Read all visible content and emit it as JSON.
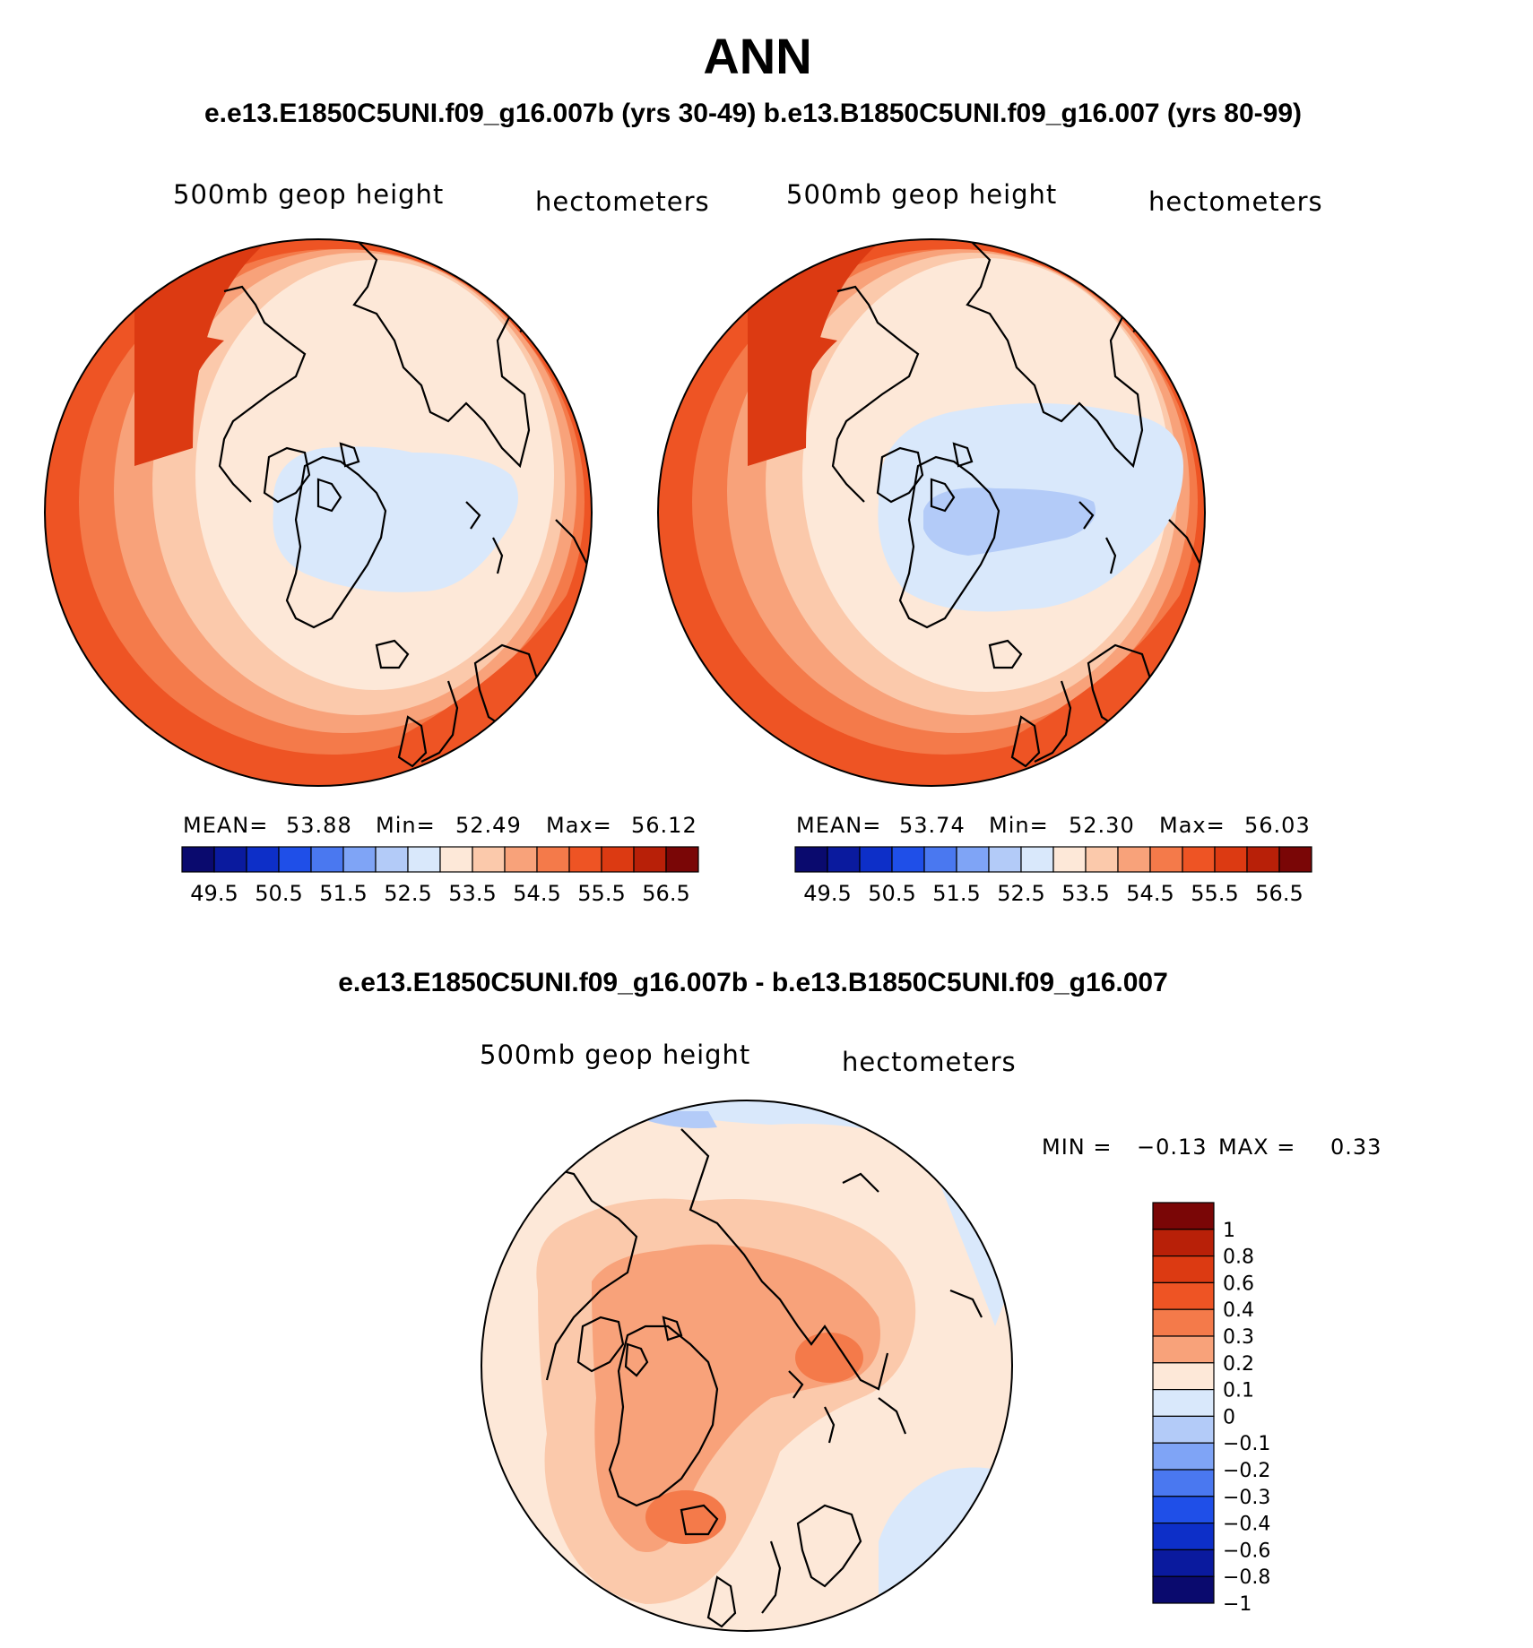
{
  "title": "ANN",
  "subtitle": "e.e13.E1850C5UNI.f09_g16.007b (yrs 30-49)  b.e13.B1850C5UNI.f09_g16.007 (yrs 80-99)",
  "panels": [
    {
      "field": "500mb geop height",
      "units": "hectometers",
      "stats": {
        "mean_label": "MEAN=",
        "mean": "53.88",
        "min_label": "Min=",
        "min": "52.49",
        "max_label": "Max=",
        "max": "56.12"
      }
    },
    {
      "field": "500mb geop height",
      "units": "hectometers",
      "stats": {
        "mean_label": "MEAN=",
        "mean": "53.74",
        "min_label": "Min=",
        "min": "52.30",
        "max_label": "Max=",
        "max": "56.03"
      }
    }
  ],
  "abs_colorbar": {
    "colors": [
      "#0a0a6e",
      "#0a1a9e",
      "#0d2fc8",
      "#1f4fe8",
      "#4a78f0",
      "#7fa4f6",
      "#b3cbf8",
      "#d9e8fb",
      "#fde8d8",
      "#fbc9ab",
      "#f8a27a",
      "#f47a4a",
      "#ee5424",
      "#dc3a12",
      "#b82008",
      "#7a0606"
    ],
    "labels": [
      "49.5",
      "50.5",
      "51.5",
      "52.5",
      "53.5",
      "54.5",
      "55.5",
      "56.5"
    ]
  },
  "diff_panel": {
    "title": "e.e13.E1850C5UNI.f09_g16.007b - b.e13.B1850C5UNI.f09_g16.007",
    "field": "500mb geop height",
    "units": "hectometers",
    "min_label": "MIN =",
    "min": "−0.13",
    "max_label": "MAX =",
    "max": "0.33",
    "colorbar": {
      "colors_top_to_bottom": [
        "#7a0606",
        "#b82008",
        "#dc3a12",
        "#ee5424",
        "#f47a4a",
        "#f8a27a",
        "#fde8d8",
        "#d9e8fb",
        "#b3cbf8",
        "#7fa4f6",
        "#4a78f0",
        "#1f4fe8",
        "#0d2fc8",
        "#0a1a9e",
        "#0a0a6e"
      ],
      "labels": [
        "1",
        "0.8",
        "0.6",
        "0.4",
        "0.3",
        "0.2",
        "0.1",
        "0",
        "−0.1",
        "−0.2",
        "−0.3",
        "−0.4",
        "−0.6",
        "−0.8",
        "−1"
      ]
    }
  }
}
